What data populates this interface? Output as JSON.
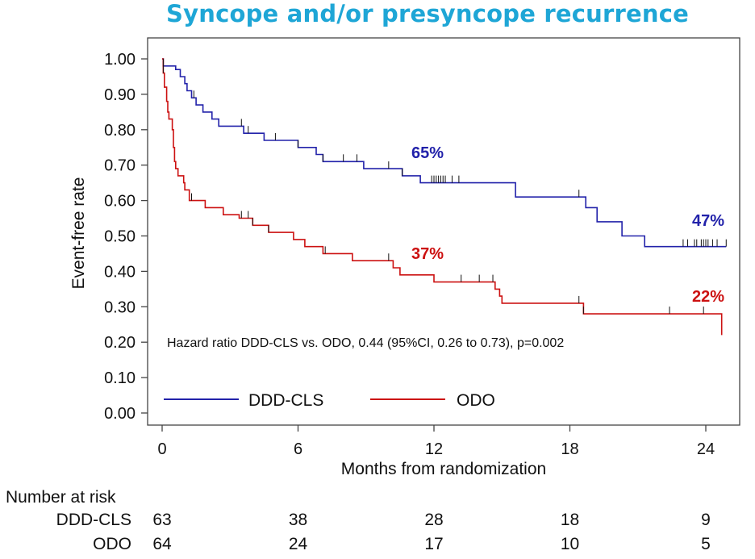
{
  "chart_data": {
    "type": "line",
    "title": "Syncope and/or presyncope recurrence",
    "xlabel": "Months from randomization",
    "ylabel": "Event-free rate",
    "xlim": [
      -0.5,
      25
    ],
    "ylim": [
      0,
      1.02
    ],
    "x_ticks": [
      0,
      6,
      12,
      18,
      24
    ],
    "x_tick_labels": [
      "0",
      "6",
      "12",
      "18",
      "24"
    ],
    "y_ticks": [
      0,
      0.1,
      0.2,
      0.3,
      0.4,
      0.5,
      0.6,
      0.7,
      0.8,
      0.9,
      1.0
    ],
    "y_tick_labels": [
      "0.00",
      "0.10",
      "0.20",
      "0.30",
      "0.40",
      "0.50",
      "0.60",
      "0.70",
      "0.80",
      "0.90",
      "1.00"
    ],
    "legend_position": "bottom-left",
    "annotation": "Hazard ratio DDD-CLS vs. ODO, 0.44 (95%CI, 0.26 to 0.73), p=0.002",
    "series": [
      {
        "name": "DDD-CLS",
        "color": "#2222aa",
        "steps": [
          [
            0,
            1.0
          ],
          [
            0.05,
            0.98
          ],
          [
            0.6,
            0.97
          ],
          [
            0.8,
            0.95
          ],
          [
            1.0,
            0.93
          ],
          [
            1.1,
            0.91
          ],
          [
            1.3,
            0.89
          ],
          [
            1.5,
            0.87
          ],
          [
            1.8,
            0.85
          ],
          [
            2.2,
            0.83
          ],
          [
            2.5,
            0.81
          ],
          [
            3.6,
            0.79
          ],
          [
            4.5,
            0.77
          ],
          [
            6.0,
            0.75
          ],
          [
            6.8,
            0.73
          ],
          [
            7.1,
            0.71
          ],
          [
            8.9,
            0.69
          ],
          [
            10.6,
            0.67
          ],
          [
            11.4,
            0.65
          ],
          [
            15.6,
            0.61
          ],
          [
            18.7,
            0.58
          ],
          [
            19.2,
            0.54
          ],
          [
            20.3,
            0.5
          ],
          [
            21.3,
            0.47
          ],
          [
            24.9,
            0.47
          ]
        ],
        "censor_times": [
          0.05,
          1.4,
          3.5,
          3.8,
          5.0,
          6.0,
          7.1,
          8.0,
          8.6,
          10.0,
          10.6,
          11.9,
          12.0,
          12.1,
          12.2,
          12.3,
          12.4,
          12.5,
          12.8,
          13.1,
          18.4,
          23.0,
          23.2,
          23.5,
          23.6,
          23.8,
          23.9,
          24.0,
          24.1,
          24.3,
          24.5,
          24.9
        ],
        "end_label": "47%",
        "mid_label": "65%"
      },
      {
        "name": "ODO",
        "color": "#cc1111",
        "steps": [
          [
            0,
            1.0
          ],
          [
            0.05,
            0.96
          ],
          [
            0.1,
            0.92
          ],
          [
            0.2,
            0.88
          ],
          [
            0.25,
            0.85
          ],
          [
            0.3,
            0.83
          ],
          [
            0.45,
            0.8
          ],
          [
            0.5,
            0.75
          ],
          [
            0.55,
            0.71
          ],
          [
            0.6,
            0.69
          ],
          [
            0.7,
            0.67
          ],
          [
            0.95,
            0.65
          ],
          [
            1.0,
            0.63
          ],
          [
            1.2,
            0.6
          ],
          [
            1.9,
            0.58
          ],
          [
            2.7,
            0.56
          ],
          [
            3.4,
            0.55
          ],
          [
            4.0,
            0.53
          ],
          [
            4.7,
            0.51
          ],
          [
            5.8,
            0.49
          ],
          [
            6.3,
            0.47
          ],
          [
            7.1,
            0.45
          ],
          [
            8.4,
            0.43
          ],
          [
            10.2,
            0.41
          ],
          [
            10.5,
            0.39
          ],
          [
            12.0,
            0.37
          ],
          [
            14.7,
            0.35
          ],
          [
            14.9,
            0.33
          ],
          [
            15.0,
            0.31
          ],
          [
            18.6,
            0.28
          ],
          [
            24.7,
            0.28
          ],
          [
            24.7,
            0.22
          ]
        ],
        "censor_times": [
          0.05,
          1.3,
          3.5,
          3.8,
          4.0,
          4.7,
          7.2,
          10.0,
          13.2,
          14.0,
          14.6,
          18.4,
          18.6,
          22.4,
          23.9
        ],
        "end_label": "22%",
        "mid_label": "37%"
      }
    ],
    "risk_table": {
      "title": "Number at risk",
      "times": [
        0,
        6,
        12,
        18,
        24
      ],
      "rows": [
        {
          "label": "DDD-CLS",
          "values": [
            "63",
            "38",
            "28",
            "18",
            "9"
          ]
        },
        {
          "label": "ODO",
          "values": [
            "64",
            "24",
            "17",
            "10",
            "5"
          ]
        }
      ]
    }
  }
}
